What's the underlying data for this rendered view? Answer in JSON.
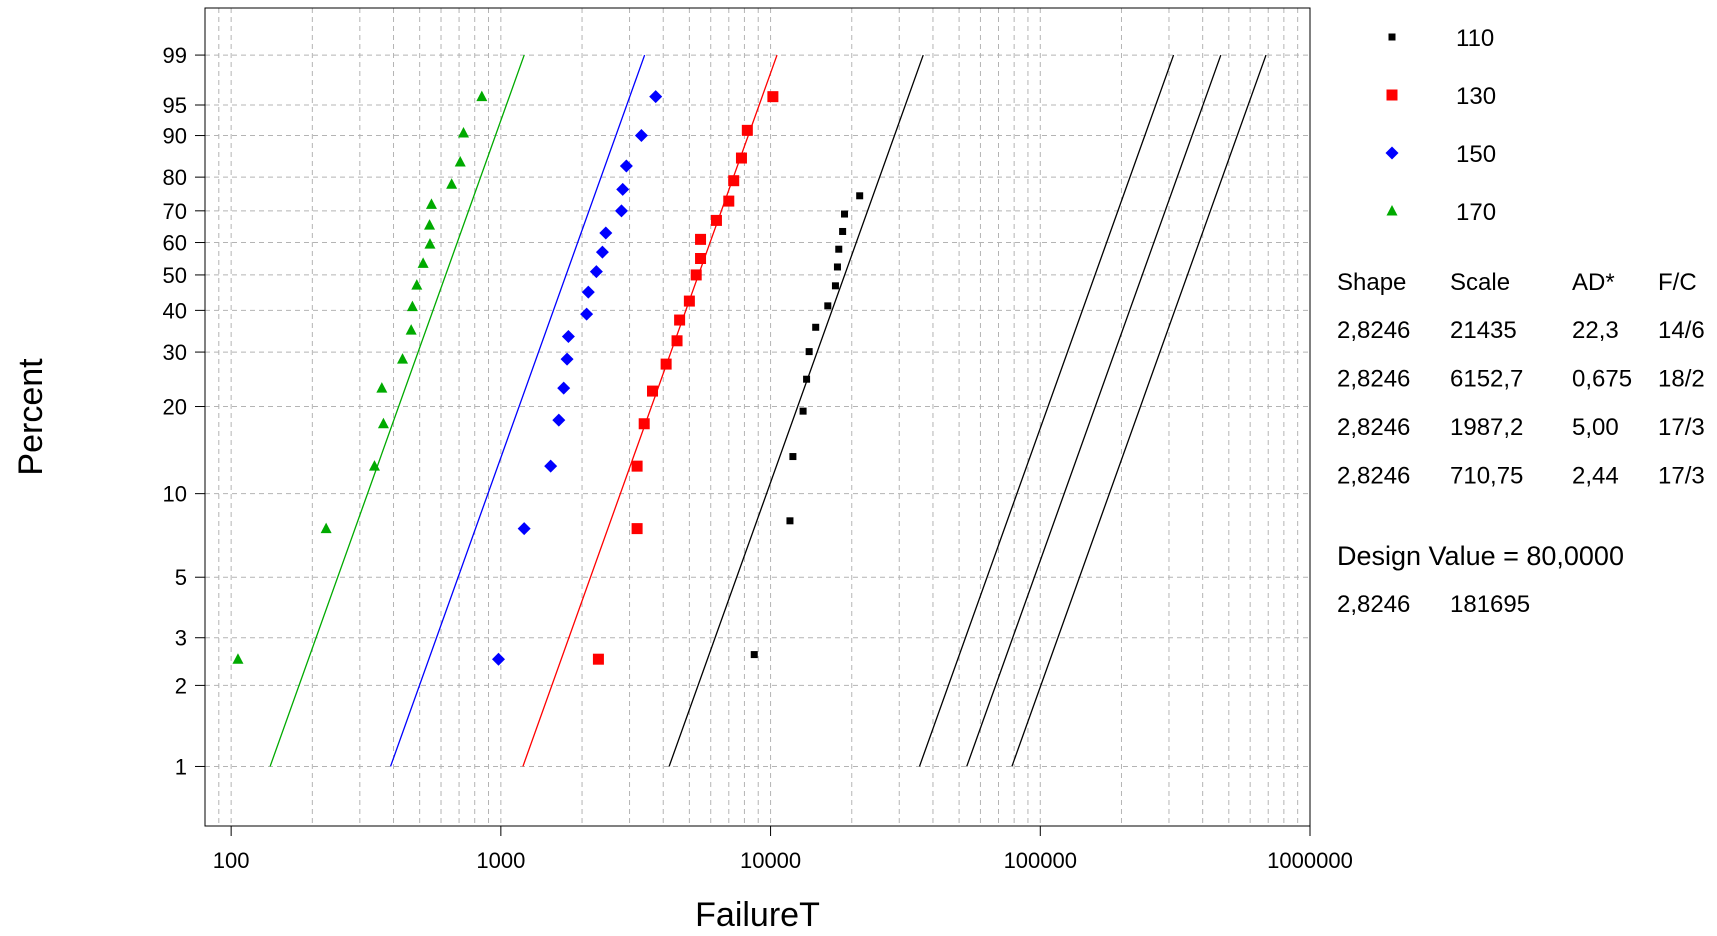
{
  "chart_data": {
    "type": "scatter",
    "x_scale": "log",
    "y_scale": "weibull-probability",
    "xlabel": "FailureT",
    "ylabel": "Percent",
    "xlim": [
      80,
      1000000
    ],
    "ylim": [
      0.6,
      99.9
    ],
    "x_ticks": [
      {
        "value": 100,
        "label": "100"
      },
      {
        "value": 1000,
        "label": "1000"
      },
      {
        "value": 10000,
        "label": "10000"
      },
      {
        "value": 100000,
        "label": "100000"
      },
      {
        "value": 1000000,
        "label": "1000000"
      }
    ],
    "y_ticks": [
      {
        "value": 1,
        "label": "1"
      },
      {
        "value": 2,
        "label": "2"
      },
      {
        "value": 3,
        "label": "3"
      },
      {
        "value": 5,
        "label": "5"
      },
      {
        "value": 10,
        "label": "10"
      },
      {
        "value": 20,
        "label": "20"
      },
      {
        "value": 30,
        "label": "30"
      },
      {
        "value": 40,
        "label": "40"
      },
      {
        "value": 50,
        "label": "50"
      },
      {
        "value": 60,
        "label": "60"
      },
      {
        "value": 70,
        "label": "70"
      },
      {
        "value": 80,
        "label": "80"
      },
      {
        "value": 90,
        "label": "90"
      },
      {
        "value": 95,
        "label": "95"
      },
      {
        "value": 99,
        "label": "99"
      }
    ],
    "grid": true,
    "legend_position": "right",
    "shape": 2.8246,
    "series": [
      {
        "name": "110",
        "marker": "square-small",
        "color": "#000000",
        "points": [
          [
            8700,
            2.6
          ],
          [
            11800,
            8
          ],
          [
            12100,
            13.5
          ],
          [
            13200,
            19.3
          ],
          [
            13600,
            24.6
          ],
          [
            13900,
            30.1
          ],
          [
            14700,
            35.7
          ],
          [
            16300,
            41.2
          ],
          [
            17400,
            46.8
          ],
          [
            17700,
            52.4
          ],
          [
            17900,
            57.9
          ],
          [
            18500,
            63.5
          ],
          [
            18800,
            69
          ],
          [
            21400,
            74.6
          ]
        ]
      },
      {
        "name": "130",
        "marker": "square",
        "color": "#ff0000",
        "points": [
          [
            2300,
            2.5
          ],
          [
            3200,
            7.5
          ],
          [
            3200,
            12.5
          ],
          [
            3400,
            17.5
          ],
          [
            3650,
            22.5
          ],
          [
            4100,
            27.5
          ],
          [
            4500,
            32.5
          ],
          [
            4600,
            37.5
          ],
          [
            5000,
            42.5
          ],
          [
            5300,
            50
          ],
          [
            5500,
            55
          ],
          [
            5500,
            61
          ],
          [
            6300,
            67
          ],
          [
            7000,
            73
          ],
          [
            7300,
            79
          ],
          [
            7800,
            85
          ],
          [
            8200,
            91
          ],
          [
            10200,
            96
          ]
        ]
      },
      {
        "name": "150",
        "marker": "diamond",
        "color": "#0000ff",
        "points": [
          [
            980,
            2.5
          ],
          [
            1220,
            7.5
          ],
          [
            1530,
            12.5
          ],
          [
            1640,
            18
          ],
          [
            1710,
            23
          ],
          [
            1760,
            28.5
          ],
          [
            1780,
            33.5
          ],
          [
            2080,
            39
          ],
          [
            2110,
            45
          ],
          [
            2260,
            51
          ],
          [
            2380,
            57
          ],
          [
            2450,
            63
          ],
          [
            2800,
            70
          ],
          [
            2830,
            76.5
          ],
          [
            2920,
            83
          ],
          [
            3320,
            90
          ],
          [
            3750,
            96
          ]
        ]
      },
      {
        "name": "170",
        "marker": "triangle",
        "color": "#00aa00",
        "points": [
          [
            106,
            2.5
          ],
          [
            225,
            7.5
          ],
          [
            340,
            12.5
          ],
          [
            367,
            17.5
          ],
          [
            362,
            23
          ],
          [
            432,
            28.5
          ],
          [
            465,
            35
          ],
          [
            470,
            41
          ],
          [
            488,
            47
          ],
          [
            515,
            53.5
          ],
          [
            546,
            59.5
          ],
          [
            544,
            65.5
          ],
          [
            553,
            72
          ],
          [
            657,
            78
          ],
          [
            707,
            84
          ],
          [
            727,
            90.5
          ],
          [
            850,
            96
          ]
        ]
      }
    ],
    "fit_lines": [
      {
        "color": "#00aa00",
        "scale": 710.75
      },
      {
        "color": "#0000ff",
        "scale": 1987.2
      },
      {
        "color": "#ff0000",
        "scale": 6152.7
      },
      {
        "color": "#000000",
        "scale": 21435
      },
      {
        "color": "#000000",
        "scale": 181695
      },
      {
        "color": "#000000",
        "scale": 272000
      },
      {
        "color": "#000000",
        "scale": 400000
      }
    ],
    "table": {
      "headers": [
        "Shape",
        "Scale",
        "AD*",
        "F/C"
      ],
      "rows": [
        [
          "2,8246",
          "21435",
          "22,3",
          "14/6"
        ],
        [
          "2,8246",
          "6152,7",
          "0,675",
          "18/2"
        ],
        [
          "2,8246",
          "1987,2",
          "5,00",
          "17/3"
        ],
        [
          "2,8246",
          "710,75",
          "2,44",
          "17/3"
        ]
      ]
    },
    "design_value_text": "Design Value = 80,0000",
    "design_row": [
      "2,8246",
      "181695"
    ]
  }
}
